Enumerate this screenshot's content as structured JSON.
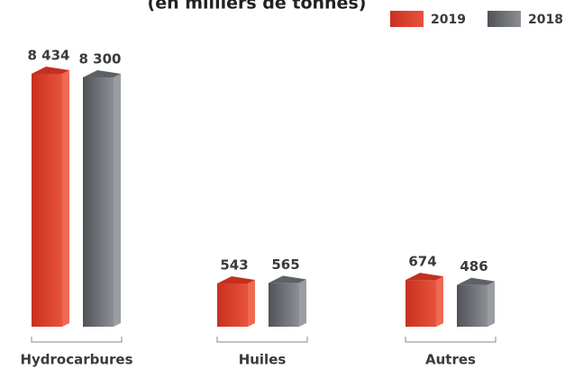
{
  "chart_data": {
    "type": "bar3d",
    "title": "(en milliers de tonnes)",
    "categories": [
      "Hydrocarbures",
      "Huiles",
      "Autres"
    ],
    "series": [
      {
        "name": "2019",
        "color": "#d9402e",
        "values": [
          8434,
          543,
          674
        ],
        "value_labels": [
          "8 434",
          "543",
          "674"
        ]
      },
      {
        "name": "2018",
        "color": "#707377",
        "values": [
          8300,
          565,
          486
        ],
        "value_labels": [
          "8 300",
          "565",
          "486"
        ]
      }
    ]
  }
}
